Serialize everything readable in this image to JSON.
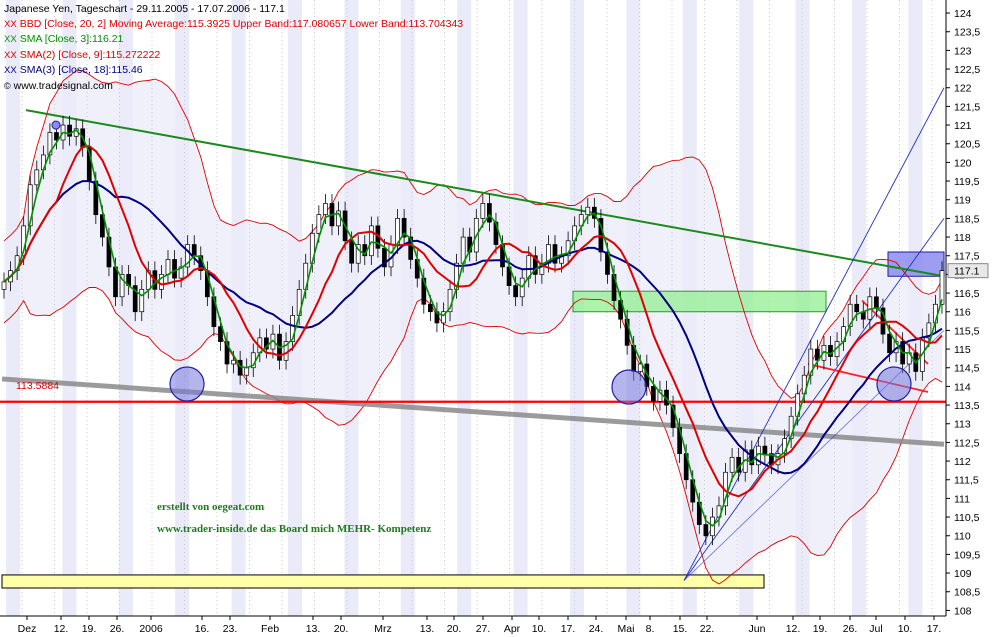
{
  "chart_data": {
    "type": "candlestick",
    "title": "Japanese Yen, Tageschart - 29.11.2005 - 17.07.2006 - 117.1",
    "source": "www.tradesignal.com",
    "last_price": "117.1",
    "ylim": [
      107.85,
      124.35
    ],
    "yticks": [
      "108",
      "108,5",
      "109",
      "109,5",
      "110",
      "110,5",
      "111",
      "111,5",
      "112",
      "112,5",
      "113",
      "113,5",
      "114",
      "114,5",
      "115",
      "115,5",
      "116",
      "116,5",
      "117",
      "117,5",
      "118",
      "118,5",
      "119",
      "119,5",
      "120",
      "120,5",
      "121",
      "121,5",
      "122",
      "122,5",
      "123",
      "123,5",
      "124"
    ],
    "xticks": [
      "Dez",
      "12.",
      "19.",
      "26.",
      "2006",
      "16.",
      "23.",
      "Feb",
      "13.",
      "20.",
      "Mrz",
      "13.",
      "20.",
      "27.",
      "Apr",
      "10.",
      "17.",
      "24.",
      "Mai",
      "8.",
      "15.",
      "22.",
      "Jun",
      "12.",
      "19.",
      "26.",
      "Jul",
      "10.",
      "17."
    ],
    "indicators": [
      {
        "label": "BBD [Close, 20, 2] Moving Average:115.3925 Upper Band:117.080657 Lower Band:113.704343",
        "color": "#e00000"
      },
      {
        "label": "SMA [Close, 3]:116.21",
        "color": "#009000"
      },
      {
        "label": "SMA(2) [Close, 9]:115.272222",
        "color": "#e00000"
      },
      {
        "label": "SMA(3) [Close, 18]:115.46",
        "color": "#000080"
      }
    ],
    "horizontal_level": {
      "label": "113.5884",
      "value": 113.5884,
      "color": "#ff0000"
    },
    "annotations": [
      "erstellt von oegeat.com",
      "www.trader-inside.de das Board mich MEHR- Kompetenz"
    ],
    "close_path": [
      [
        0,
        116.8
      ],
      [
        1,
        117.1
      ],
      [
        2,
        117.5
      ],
      [
        3,
        118.3
      ],
      [
        4,
        119.4
      ],
      [
        5,
        119.8
      ],
      [
        6,
        120.2
      ],
      [
        7,
        120.8
      ],
      [
        8,
        120.6
      ],
      [
        9,
        121.0
      ],
      [
        10,
        120.7
      ],
      [
        11,
        120.9
      ],
      [
        12,
        120.4
      ],
      [
        13,
        119.5
      ],
      [
        14,
        118.6
      ],
      [
        15,
        118.0
      ],
      [
        16,
        117.2
      ],
      [
        17,
        116.4
      ],
      [
        18,
        117.0
      ],
      [
        19,
        116.7
      ],
      [
        20,
        116.0
      ],
      [
        21,
        116.6
      ],
      [
        22,
        117.1
      ],
      [
        23,
        116.6
      ],
      [
        24,
        117.0
      ],
      [
        25,
        117.4
      ],
      [
        26,
        116.9
      ],
      [
        27,
        117.2
      ],
      [
        28,
        117.8
      ],
      [
        29,
        117.5
      ],
      [
        30,
        117.1
      ],
      [
        31,
        116.4
      ],
      [
        32,
        115.6
      ],
      [
        33,
        115.2
      ],
      [
        34,
        114.6
      ],
      [
        35,
        114.7
      ],
      [
        36,
        114.3
      ],
      [
        37,
        114.5
      ],
      [
        38,
        114.9
      ],
      [
        39,
        115.3
      ],
      [
        40,
        115.0
      ],
      [
        41,
        115.4
      ],
      [
        42,
        114.7
      ],
      [
        43,
        115.2
      ],
      [
        44,
        115.9
      ],
      [
        45,
        116.6
      ],
      [
        46,
        117.3
      ],
      [
        47,
        118.1
      ],
      [
        48,
        118.6
      ],
      [
        49,
        118.9
      ],
      [
        50,
        118.3
      ],
      [
        51,
        118.7
      ],
      [
        52,
        117.9
      ],
      [
        53,
        117.3
      ],
      [
        54,
        117.8
      ],
      [
        55,
        117.5
      ],
      [
        56,
        118.3
      ],
      [
        57,
        117.7
      ],
      [
        58,
        117.2
      ],
      [
        59,
        117.8
      ],
      [
        60,
        118.5
      ],
      [
        61,
        118.0
      ],
      [
        62,
        117.4
      ],
      [
        63,
        116.9
      ],
      [
        64,
        116.2
      ],
      [
        65,
        116.0
      ],
      [
        66,
        115.7
      ],
      [
        67,
        116.0
      ],
      [
        68,
        116.6
      ],
      [
        69,
        117.3
      ],
      [
        70,
        118.0
      ],
      [
        71,
        117.6
      ],
      [
        72,
        118.5
      ],
      [
        73,
        118.9
      ],
      [
        74,
        118.4
      ],
      [
        75,
        117.8
      ],
      [
        76,
        117.2
      ],
      [
        77,
        116.7
      ],
      [
        78,
        116.4
      ],
      [
        79,
        116.9
      ],
      [
        80,
        117.5
      ],
      [
        81,
        117.0
      ],
      [
        82,
        117.3
      ],
      [
        83,
        117.8
      ],
      [
        84,
        117.3
      ],
      [
        85,
        117.5
      ],
      [
        86,
        117.9
      ],
      [
        87,
        118.3
      ],
      [
        88,
        118.6
      ],
      [
        89,
        118.8
      ],
      [
        90,
        118.5
      ],
      [
        91,
        117.6
      ],
      [
        92,
        117.0
      ],
      [
        93,
        116.3
      ],
      [
        94,
        115.8
      ],
      [
        95,
        115.1
      ],
      [
        96,
        114.4
      ],
      [
        97,
        114.6
      ],
      [
        98,
        114.0
      ],
      [
        99,
        113.6
      ],
      [
        100,
        113.9
      ],
      [
        101,
        113.5
      ],
      [
        102,
        112.9
      ],
      [
        103,
        112.2
      ],
      [
        104,
        111.5
      ],
      [
        105,
        110.9
      ],
      [
        106,
        110.3
      ],
      [
        107,
        110.0
      ],
      [
        108,
        110.5
      ],
      [
        109,
        110.8
      ],
      [
        110,
        111.7
      ],
      [
        111,
        112.1
      ],
      [
        112,
        111.7
      ],
      [
        113,
        112.3
      ],
      [
        114,
        111.9
      ],
      [
        115,
        112.4
      ],
      [
        116,
        112.2
      ],
      [
        117,
        111.9
      ],
      [
        118,
        112.2
      ],
      [
        119,
        112.6
      ],
      [
        120,
        113.2
      ],
      [
        121,
        113.8
      ],
      [
        122,
        114.3
      ],
      [
        123,
        115.0
      ],
      [
        124,
        114.7
      ],
      [
        125,
        115.1
      ],
      [
        126,
        114.8
      ],
      [
        127,
        115.2
      ],
      [
        128,
        115.6
      ],
      [
        129,
        116.2
      ],
      [
        130,
        116.0
      ],
      [
        131,
        115.8
      ],
      [
        132,
        116.4
      ],
      [
        133,
        116.1
      ],
      [
        134,
        115.4
      ],
      [
        135,
        114.9
      ],
      [
        136,
        115.2
      ],
      [
        137,
        114.6
      ],
      [
        138,
        114.9
      ],
      [
        139,
        114.4
      ],
      [
        140,
        115.3
      ],
      [
        141,
        115.7
      ],
      [
        142,
        116.2
      ],
      [
        143,
        117.1
      ]
    ],
    "price_range_from": 108,
    "price_range_to": 124
  },
  "colors": {
    "band_fill": "#ebebfa",
    "stripe": "#d8d8f2",
    "green_sma": "#009000",
    "red_sma": "#e00000",
    "blue_sma": "#000080",
    "bbd": "#e00000",
    "trend_green": "#1a8a1a",
    "trend_gray": "#8a8a8a",
    "channel_blue": "#2030c0"
  }
}
